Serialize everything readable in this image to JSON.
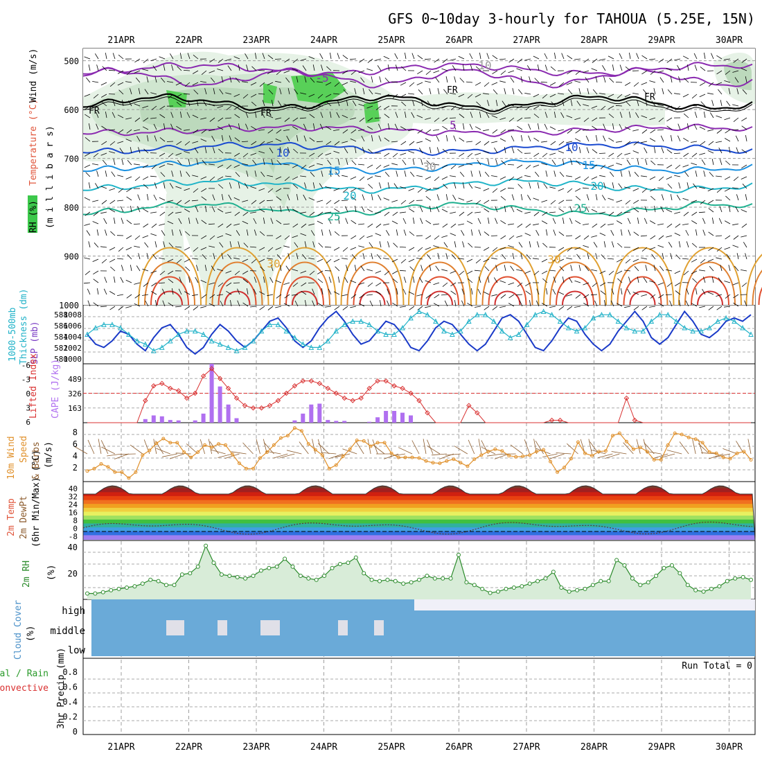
{
  "title": "GFS 0~10day 3-hourly for TAHOUA (5.25E, 15N)",
  "dates": [
    "21APR",
    "22APR",
    "23APR",
    "24APR",
    "25APR",
    "26APR",
    "27APR",
    "28APR",
    "29APR",
    "30APR"
  ],
  "colors": {
    "wind": "#000000",
    "temperature": "#e0553b",
    "rh": "#3cb44b",
    "thickness": "#20b2c8",
    "slp": "#7a3cc4",
    "lifted": "#d93030",
    "cape": "#b070f0",
    "wind10": "#e0902a",
    "rh2m": "#2a8a2a",
    "cloud": "#4a90c8",
    "precip_total": "#2a9a2a",
    "precip_conv": "#d93030"
  },
  "panel1": {
    "ylabel_wind": "Wind (m/s)",
    "ylabel_temp": "Temperature (°C)",
    "ylabel_rh": "RH (%)",
    "ylabel_unit": "(m i l l i b a r s)",
    "yticks": [
      500,
      600,
      700,
      800,
      900,
      1000
    ],
    "fr_label": "FR",
    "contour_labels": [
      "-5",
      "5",
      "10",
      "10",
      "15",
      "15",
      "20",
      "20",
      "25",
      "25",
      "30",
      "30",
      "10",
      "30"
    ]
  },
  "panel2": {
    "ylabel1": "1000-500mb",
    "ylabel2": "Thickness (dm)",
    "ylabel3": "SLP (mb)",
    "left_ticks": [
      "588",
      "586",
      "584",
      "582",
      "580"
    ],
    "right_ticks": [
      "1008",
      "1006",
      "1004",
      "1002",
      "1000"
    ]
  },
  "panel3": {
    "ylabel1": "Lifted Index",
    "ylabel2": "CAPE (J/kg)",
    "left_ticks": [
      "-6",
      "-3",
      "0",
      "3",
      "6"
    ],
    "right_ticks": [
      "489",
      "326",
      "163"
    ]
  },
  "panel4": {
    "ylabel1": "10m Wind",
    "ylabel2": "Speed",
    "ylabel3": "& Barbs",
    "ylabel4": "(m/s)",
    "yticks": [
      "8",
      "6",
      "4",
      "2"
    ]
  },
  "panel5": {
    "ylabel1": "2m Temp",
    "ylabel2": "2m DewPt",
    "ylabel3": "(6hr Min/Max) (°C)",
    "yticks": [
      "40",
      "32",
      "24",
      "16",
      "8",
      "0",
      "-8"
    ]
  },
  "panel6": {
    "ylabel1": "2m RH",
    "ylabel2": "(%)",
    "yticks": [
      "40",
      "20"
    ]
  },
  "panel7": {
    "ylabel1": "Cloud Cover",
    "ylabel2": "(%)",
    "levels": [
      "high",
      "middle",
      "low"
    ]
  },
  "panel8": {
    "ylabel1": "Total / Rain",
    "ylabel2": "Convective",
    "ylabel3": "3hr Precip (mm)",
    "yticks": [
      "0.8",
      "0.6",
      "0.4",
      "0.2",
      "0"
    ],
    "run_total": "Run Total = 0"
  },
  "chart_data": [
    {
      "type": "line",
      "title": "1000-500mb Thickness (dm) / SLP (mb)",
      "x_step_hours": 3,
      "series": [
        {
          "name": "1000-500mb Thickness (dm)",
          "axis": "left",
          "ylim": [
            580,
            589
          ],
          "values": [
            584.5,
            585.5,
            586,
            586,
            585.5,
            584.5,
            583.5,
            583,
            582,
            582.5,
            583.5,
            584.5,
            585,
            585,
            584.5,
            583.5,
            583,
            582.5,
            582,
            582.5,
            583.5,
            585,
            586,
            586,
            585,
            584,
            583,
            582.5,
            582.5,
            583.5,
            585,
            586,
            586.5,
            586.5,
            586,
            585,
            584.5,
            584.5,
            585.5,
            587,
            588,
            587.5,
            586.5,
            585,
            584.5,
            585,
            586.5,
            587.5,
            587.5,
            586.5,
            585,
            584,
            584.5,
            586,
            587.5,
            588,
            587.5,
            586.5,
            585.5,
            585,
            585.5,
            587,
            587.5,
            587.5,
            586.5,
            585.5,
            585,
            585,
            586.5,
            587.5,
            587.5,
            586.5,
            585.5,
            585,
            585,
            585.5,
            586.5,
            587,
            586.5,
            585.5,
            584.5
          ]
        },
        {
          "name": "SLP (mb)",
          "axis": "right",
          "ylim": [
            1000,
            1009
          ],
          "values": [
            1004.5,
            1003,
            1002.5,
            1003.5,
            1005,
            1004.5,
            1003,
            1002,
            1004,
            1005.5,
            1006,
            1004.5,
            1002.5,
            1001.5,
            1002.5,
            1004.5,
            1006,
            1005,
            1003.5,
            1002.5,
            1003.5,
            1005,
            1006.5,
            1007,
            1005.5,
            1003.5,
            1002.5,
            1003.5,
            1005.5,
            1007,
            1008,
            1006.5,
            1004.5,
            1003,
            1003.5,
            1005,
            1006.5,
            1006,
            1004.5,
            1002.5,
            1002,
            1003.5,
            1005.5,
            1006.5,
            1006,
            1004.5,
            1003,
            1002,
            1003,
            1005,
            1007,
            1007.5,
            1006.5,
            1004.5,
            1002.5,
            1002,
            1003.5,
            1005.5,
            1007,
            1006.5,
            1004.5,
            1003,
            1002,
            1003,
            1005,
            1006.5,
            1008,
            1006.5,
            1004,
            1003,
            1004,
            1006,
            1008,
            1006.5,
            1004.5,
            1004,
            1005,
            1006.5,
            1007,
            1006.5,
            1007.5
          ]
        }
      ]
    },
    {
      "type": "bar",
      "title": "Lifted Index / CAPE (J/kg)",
      "series": [
        {
          "name": "CAPE (J/kg)",
          "ylim": [
            0,
            650
          ],
          "values": [
            0,
            0,
            0,
            0,
            0,
            0,
            0,
            40,
            80,
            70,
            30,
            25,
            0,
            25,
            100,
            650,
            400,
            200,
            50,
            0,
            0,
            0,
            0,
            0,
            0,
            25,
            100,
            200,
            210,
            30,
            20,
            20,
            0,
            0,
            10,
            60,
            130,
            130,
            110,
            80,
            0,
            0,
            0,
            0,
            0,
            0,
            0,
            0,
            0,
            0,
            0,
            0,
            0,
            0,
            0,
            0,
            0,
            0,
            0,
            0,
            0,
            0,
            0,
            0,
            0,
            0,
            0,
            0,
            0,
            0,
            0,
            0,
            0,
            0,
            0,
            0,
            0,
            0,
            0,
            0,
            0
          ]
        },
        {
          "name": "Lifted Index",
          "ylim": [
            6,
            -6
          ],
          "values": [
            6,
            6,
            6,
            6,
            6,
            6,
            6,
            1.5,
            -1.5,
            -2,
            -1,
            -0.5,
            1,
            0,
            -3.5,
            -5,
            -3,
            -1,
            1,
            2.5,
            3,
            3,
            2.5,
            1.5,
            0,
            -1.5,
            -2.5,
            -2.5,
            -2,
            -1,
            0,
            1,
            1.5,
            1,
            -1,
            -2.5,
            -2.5,
            -1.5,
            -1,
            0,
            1.5,
            4,
            6,
            6,
            6,
            6,
            2.5,
            4,
            6,
            6,
            6,
            6,
            6,
            6,
            6,
            6,
            5.5,
            5.5,
            6,
            6,
            6,
            6,
            6,
            6,
            6,
            1,
            5.5,
            6,
            6,
            6,
            6,
            6,
            6,
            6,
            6,
            6,
            6,
            6,
            6,
            6,
            6
          ]
        }
      ]
    },
    {
      "type": "line",
      "title": "10m Wind Speed (m/s)",
      "ylim": [
        0,
        10
      ],
      "series": [
        {
          "name": "10m Wind Speed (m/s)",
          "values": [
            1.8,
            2.2,
            3,
            2.5,
            1.6,
            1.6,
            0.6,
            1.6,
            4.5,
            5.3,
            6.5,
            7.3,
            6.6,
            6.6,
            5,
            4.1,
            5,
            6.2,
            5.8,
            6.4,
            6.2,
            4.6,
            3.1,
            2.2,
            2.2,
            4,
            5,
            6.2,
            7.4,
            7.8,
            9.1,
            8.6,
            6.4,
            5.4,
            4.5,
            2.2,
            2.8,
            4.3,
            5.5,
            7,
            6.9,
            6,
            6.6,
            6.6,
            4.8,
            4.1,
            4.1,
            4.1,
            4,
            3.5,
            3.2,
            3.1,
            3.5,
            3.8,
            3.2,
            2.6,
            3.8,
            4.5,
            5.1,
            5.5,
            5.2,
            4.4,
            4.2,
            4.3,
            4.5,
            5.1,
            5.4,
            3.4,
            1.6,
            2.4,
            3.9,
            6.7,
            4.8,
            4.4,
            5.1,
            5.2,
            7.8,
            8.2,
            6.8,
            5.5,
            5.8,
            5.1,
            3.7,
            3.7,
            6.2,
            8.2,
            8,
            7.5,
            7.2,
            6.6,
            5,
            4.8,
            4.1,
            3.9,
            4.8,
            5.1,
            3.7
          ]
        }
      ]
    },
    {
      "type": "area",
      "title": "2m RH (%)",
      "ylim": [
        0,
        45
      ],
      "series": [
        {
          "name": "2m RH (%)",
          "values": [
            4.5,
            4.5,
            5.5,
            7,
            8,
            9,
            10,
            12,
            15,
            14,
            11,
            11,
            19,
            20,
            25,
            41,
            28,
            19,
            18,
            17,
            16,
            18,
            22,
            24,
            25,
            31,
            25,
            18,
            16,
            15,
            18,
            24,
            27,
            28,
            32,
            20,
            15,
            14,
            15,
            14,
            12,
            13,
            15,
            18,
            16,
            16,
            16,
            34,
            13,
            11,
            8,
            5,
            6,
            8,
            9,
            10,
            12,
            14,
            16,
            21,
            9,
            6,
            7,
            8,
            11,
            14,
            14,
            30,
            26,
            16,
            11,
            13,
            18,
            24,
            26,
            20,
            11,
            7,
            6,
            8,
            10,
            14,
            16,
            17,
            15
          ]
        }
      ]
    },
    {
      "type": "bar",
      "title": "3hr Precip (mm)",
      "ylim": [
        0,
        1
      ],
      "series": [
        {
          "name": "Total / Rain",
          "values": []
        },
        {
          "name": "Convective",
          "values": []
        }
      ]
    }
  ]
}
